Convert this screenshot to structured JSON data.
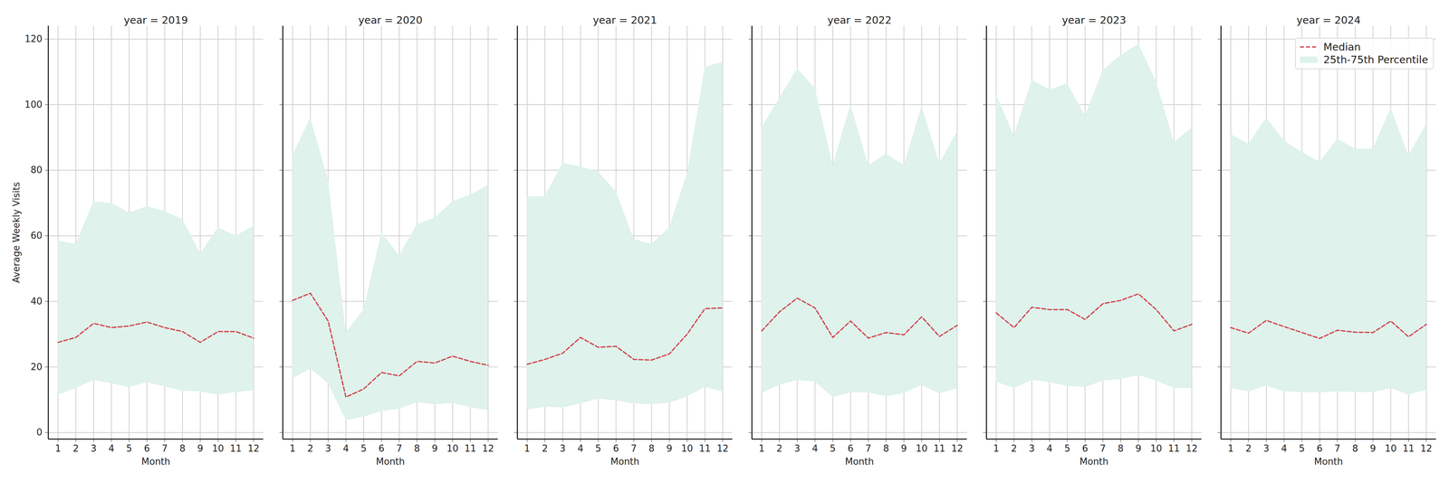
{
  "chart_data": [
    {
      "type": "line",
      "title": "year = 2019",
      "xlabel": "Month",
      "ylabel": "Average Weekly Visits",
      "x": [
        1,
        2,
        3,
        4,
        5,
        6,
        7,
        8,
        9,
        10,
        11,
        12
      ],
      "xlim": [
        0.45,
        12.55
      ],
      "xticks": [
        1,
        2,
        3,
        4,
        5,
        6,
        7,
        8,
        9,
        10,
        11,
        12
      ],
      "ylim": [
        -2,
        124
      ],
      "yticks": [
        0,
        20,
        40,
        60,
        80,
        100,
        120
      ],
      "grid": true,
      "series": [
        {
          "name": "Median",
          "type": "line",
          "line_style": "dashed",
          "color": "#d1434b",
          "values": [
            27.5,
            29,
            33.3,
            32,
            32.5,
            33.7,
            32,
            30.8,
            27.5,
            30.8,
            30.8,
            28.8
          ]
        },
        {
          "name": "25th-75th Percentile",
          "type": "area",
          "color": "#dff2ec",
          "lower": [
            11.5,
            13.5,
            16,
            15,
            13.8,
            15.3,
            14,
            12.7,
            12.5,
            11.5,
            12.3,
            12.8
          ],
          "upper": [
            58.5,
            57.5,
            70.5,
            70,
            67,
            69,
            67.5,
            65,
            54.5,
            62.5,
            60,
            63
          ]
        }
      ]
    },
    {
      "type": "line",
      "title": "year = 2020",
      "xlabel": "Month",
      "tick_labels": "x",
      "x": [
        1,
        2,
        3,
        4,
        5,
        6,
        7,
        8,
        9,
        10,
        11,
        12
      ],
      "xlim": [
        0.45,
        12.55
      ],
      "xticks": [
        1,
        2,
        3,
        4,
        5,
        6,
        7,
        8,
        9,
        10,
        11,
        12
      ],
      "ylim": [
        -2,
        124
      ],
      "yticks": [
        0,
        20,
        40,
        60,
        80,
        100,
        120
      ],
      "grid": true,
      "series": [
        {
          "name": "Median",
          "type": "line",
          "line_style": "dashed",
          "color": "#d1434b",
          "values": [
            40.3,
            42.5,
            34,
            10.8,
            13.3,
            18.3,
            17.3,
            21.7,
            21.2,
            23.3,
            21.7,
            20.5
          ]
        },
        {
          "name": "25th-75th Percentile",
          "type": "area",
          "color": "#dff2ec",
          "lower": [
            16.5,
            19.5,
            15,
            3.8,
            4.8,
            6.5,
            7.2,
            9.2,
            8.5,
            9,
            7.7,
            6.8
          ],
          "upper": [
            84.5,
            96,
            77,
            30.5,
            37.5,
            61,
            54,
            63.5,
            65.5,
            70.5,
            72.5,
            75.5
          ]
        }
      ]
    },
    {
      "type": "line",
      "title": "year = 2021",
      "xlabel": "Month",
      "tick_labels": "x",
      "x": [
        1,
        2,
        3,
        4,
        5,
        6,
        7,
        8,
        9,
        10,
        11,
        12
      ],
      "xlim": [
        0.45,
        12.55
      ],
      "xticks": [
        1,
        2,
        3,
        4,
        5,
        6,
        7,
        8,
        9,
        10,
        11,
        12
      ],
      "ylim": [
        -2,
        124
      ],
      "yticks": [
        0,
        20,
        40,
        60,
        80,
        100,
        120
      ],
      "grid": true,
      "series": [
        {
          "name": "Median",
          "type": "line",
          "line_style": "dashed",
          "color": "#d1434b",
          "values": [
            20.8,
            22.3,
            24.2,
            29,
            26,
            26.3,
            22.3,
            22.1,
            24,
            30,
            37.8,
            38
          ]
        },
        {
          "name": "25th-75th Percentile",
          "type": "area",
          "color": "#dff2ec",
          "lower": [
            7,
            7.8,
            7.6,
            8.8,
            10.3,
            9.8,
            8.8,
            8.6,
            9,
            11,
            13.8,
            12.5
          ],
          "upper": [
            72,
            72,
            82.3,
            81,
            79.5,
            73.5,
            59,
            57.5,
            62.5,
            79,
            111.5,
            113
          ]
        }
      ]
    },
    {
      "type": "line",
      "title": "year = 2022",
      "xlabel": "Month",
      "tick_labels": "x",
      "x": [
        1,
        2,
        3,
        4,
        5,
        6,
        7,
        8,
        9,
        10,
        11,
        12
      ],
      "xlim": [
        0.45,
        12.55
      ],
      "xticks": [
        1,
        2,
        3,
        4,
        5,
        6,
        7,
        8,
        9,
        10,
        11,
        12
      ],
      "ylim": [
        -2,
        124
      ],
      "yticks": [
        0,
        20,
        40,
        60,
        80,
        100,
        120
      ],
      "grid": true,
      "series": [
        {
          "name": "Median",
          "type": "line",
          "line_style": "dashed",
          "color": "#d1434b",
          "values": [
            31,
            36.8,
            41,
            38,
            29,
            34,
            28.8,
            30.5,
            29.8,
            35.3,
            29.3,
            32.7
          ]
        },
        {
          "name": "25th-75th Percentile",
          "type": "area",
          "color": "#dff2ec",
          "lower": [
            12,
            14.5,
            16,
            15.5,
            10.8,
            12.2,
            12.2,
            11,
            12,
            14.5,
            11.8,
            13.5
          ],
          "upper": [
            93,
            102,
            111,
            105,
            81.5,
            100,
            81.5,
            85,
            81.5,
            99.5,
            82,
            92
          ]
        }
      ]
    },
    {
      "type": "line",
      "title": "year = 2023",
      "xlabel": "Month",
      "tick_labels": "x",
      "x": [
        1,
        2,
        3,
        4,
        5,
        6,
        7,
        8,
        9,
        10,
        11,
        12
      ],
      "xlim": [
        0.45,
        12.55
      ],
      "xticks": [
        1,
        2,
        3,
        4,
        5,
        6,
        7,
        8,
        9,
        10,
        11,
        12
      ],
      "ylim": [
        -2,
        124
      ],
      "yticks": [
        0,
        20,
        40,
        60,
        80,
        100,
        120
      ],
      "grid": true,
      "series": [
        {
          "name": "Median",
          "type": "line",
          "line_style": "dashed",
          "color": "#d1434b",
          "values": [
            36.5,
            32,
            38.2,
            37.5,
            37.5,
            34.5,
            39.3,
            40.3,
            42.3,
            37.5,
            31,
            33
          ]
        },
        {
          "name": "25th-75th Percentile",
          "type": "area",
          "color": "#dff2ec",
          "lower": [
            15.5,
            13.5,
            16,
            15.3,
            14.2,
            13.8,
            15.8,
            16.2,
            17.5,
            15.8,
            13.5,
            13.5
          ],
          "upper": [
            103,
            90.5,
            107.5,
            104.5,
            106.5,
            96.5,
            110.5,
            115,
            118.5,
            107,
            88.5,
            93
          ]
        }
      ]
    },
    {
      "type": "line",
      "title": "year = 2024",
      "xlabel": "Month",
      "tick_labels": "x",
      "legend": "upper right",
      "x": [
        1,
        2,
        3,
        4,
        5,
        6,
        7,
        8,
        9,
        10,
        11,
        12
      ],
      "xlim": [
        0.45,
        12.55
      ],
      "xticks": [
        1,
        2,
        3,
        4,
        5,
        6,
        7,
        8,
        9,
        10,
        11,
        12
      ],
      "ylim": [
        -2,
        124
      ],
      "yticks": [
        0,
        20,
        40,
        60,
        80,
        100,
        120
      ],
      "grid": true,
      "series": [
        {
          "name": "Median",
          "type": "line",
          "line_style": "dashed",
          "color": "#d1434b",
          "values": [
            32,
            30.3,
            34.2,
            32.3,
            30.5,
            28.7,
            31.2,
            30.6,
            30.5,
            34,
            29.2,
            33
          ]
        },
        {
          "name": "25th-75th Percentile",
          "type": "area",
          "color": "#dff2ec",
          "lower": [
            13.5,
            12.5,
            14.3,
            12.5,
            12.3,
            12.2,
            12.5,
            12.3,
            12.3,
            13.5,
            11.5,
            13
          ],
          "upper": [
            91,
            88,
            96,
            89,
            85.5,
            82.5,
            89.5,
            86.5,
            86.5,
            99,
            84.5,
            94
          ]
        }
      ]
    }
  ]
}
